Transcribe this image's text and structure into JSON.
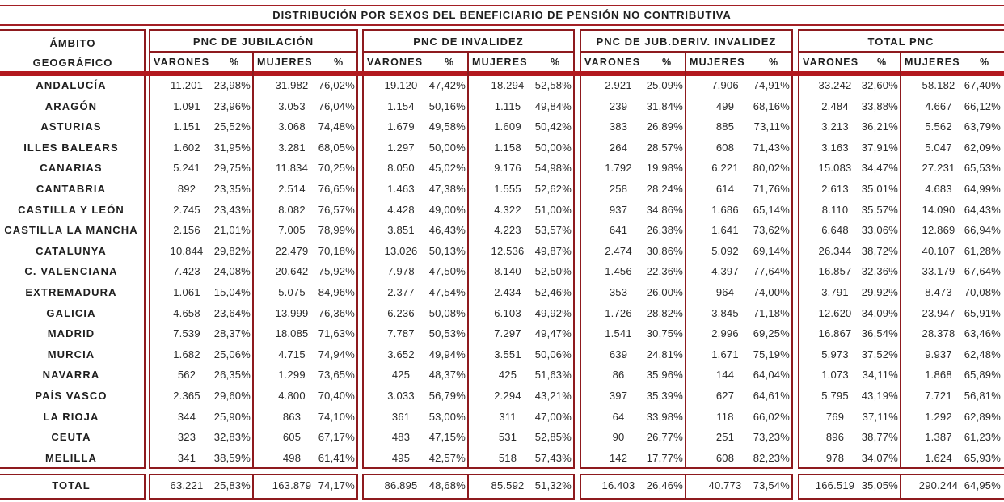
{
  "title": "DISTRIBUCIÓN POR SEXOS DEL BENEFICIARIO DE PENSIÓN NO CONTRIBUTIVA",
  "header": {
    "ambito_line1": "ÁMBITO",
    "ambito_line2": "GEOGRÁFICO",
    "groups": [
      {
        "label": "PNC DE JUBILACIÓN"
      },
      {
        "label": "PNC DE INVALIDEZ"
      },
      {
        "label": "PNC DE JUB.DERIV. INVALIDEZ"
      },
      {
        "label": "TOTAL PNC"
      }
    ],
    "sub": {
      "varones": "VARONES",
      "pct": "%",
      "mujeres": "MUJERES"
    }
  },
  "rows": [
    {
      "name": "ANDALUCÍA",
      "v": [
        "11.201",
        "23,98%",
        "31.982",
        "76,02%",
        "19.120",
        "47,42%",
        "18.294",
        "52,58%",
        "2.921",
        "25,09%",
        "7.906",
        "74,91%",
        "33.242",
        "32,60%",
        "58.182",
        "67,40%"
      ]
    },
    {
      "name": "ARAGÓN",
      "v": [
        "1.091",
        "23,96%",
        "3.053",
        "76,04%",
        "1.154",
        "50,16%",
        "1.115",
        "49,84%",
        "239",
        "31,84%",
        "499",
        "68,16%",
        "2.484",
        "33,88%",
        "4.667",
        "66,12%"
      ]
    },
    {
      "name": "ASTURIAS",
      "v": [
        "1.151",
        "25,52%",
        "3.068",
        "74,48%",
        "1.679",
        "49,58%",
        "1.609",
        "50,42%",
        "383",
        "26,89%",
        "885",
        "73,11%",
        "3.213",
        "36,21%",
        "5.562",
        "63,79%"
      ]
    },
    {
      "name": "ILLES BALEARS",
      "v": [
        "1.602",
        "31,95%",
        "3.281",
        "68,05%",
        "1.297",
        "50,00%",
        "1.158",
        "50,00%",
        "264",
        "28,57%",
        "608",
        "71,43%",
        "3.163",
        "37,91%",
        "5.047",
        "62,09%"
      ]
    },
    {
      "name": "CANARIAS",
      "v": [
        "5.241",
        "29,75%",
        "11.834",
        "70,25%",
        "8.050",
        "45,02%",
        "9.176",
        "54,98%",
        "1.792",
        "19,98%",
        "6.221",
        "80,02%",
        "15.083",
        "34,47%",
        "27.231",
        "65,53%"
      ]
    },
    {
      "name": "CANTABRIA",
      "v": [
        "892",
        "23,35%",
        "2.514",
        "76,65%",
        "1.463",
        "47,38%",
        "1.555",
        "52,62%",
        "258",
        "28,24%",
        "614",
        "71,76%",
        "2.613",
        "35,01%",
        "4.683",
        "64,99%"
      ]
    },
    {
      "name": "CASTILLA Y LEÓN",
      "v": [
        "2.745",
        "23,43%",
        "8.082",
        "76,57%",
        "4.428",
        "49,00%",
        "4.322",
        "51,00%",
        "937",
        "34,86%",
        "1.686",
        "65,14%",
        "8.110",
        "35,57%",
        "14.090",
        "64,43%"
      ]
    },
    {
      "name": "CASTILLA LA MANCHA",
      "v": [
        "2.156",
        "21,01%",
        "7.005",
        "78,99%",
        "3.851",
        "46,43%",
        "4.223",
        "53,57%",
        "641",
        "26,38%",
        "1.641",
        "73,62%",
        "6.648",
        "33,06%",
        "12.869",
        "66,94%"
      ]
    },
    {
      "name": "CATALUNYA",
      "v": [
        "10.844",
        "29,82%",
        "22.479",
        "70,18%",
        "13.026",
        "50,13%",
        "12.536",
        "49,87%",
        "2.474",
        "30,86%",
        "5.092",
        "69,14%",
        "26.344",
        "38,72%",
        "40.107",
        "61,28%"
      ]
    },
    {
      "name": "C. VALENCIANA",
      "v": [
        "7.423",
        "24,08%",
        "20.642",
        "75,92%",
        "7.978",
        "47,50%",
        "8.140",
        "52,50%",
        "1.456",
        "22,36%",
        "4.397",
        "77,64%",
        "16.857",
        "32,36%",
        "33.179",
        "67,64%"
      ]
    },
    {
      "name": "EXTREMADURA",
      "v": [
        "1.061",
        "15,04%",
        "5.075",
        "84,96%",
        "2.377",
        "47,54%",
        "2.434",
        "52,46%",
        "353",
        "26,00%",
        "964",
        "74,00%",
        "3.791",
        "29,92%",
        "8.473",
        "70,08%"
      ]
    },
    {
      "name": "GALICIA",
      "v": [
        "4.658",
        "23,64%",
        "13.999",
        "76,36%",
        "6.236",
        "50,08%",
        "6.103",
        "49,92%",
        "1.726",
        "28,82%",
        "3.845",
        "71,18%",
        "12.620",
        "34,09%",
        "23.947",
        "65,91%"
      ]
    },
    {
      "name": "MADRID",
      "v": [
        "7.539",
        "28,37%",
        "18.085",
        "71,63%",
        "7.787",
        "50,53%",
        "7.297",
        "49,47%",
        "1.541",
        "30,75%",
        "2.996",
        "69,25%",
        "16.867",
        "36,54%",
        "28.378",
        "63,46%"
      ]
    },
    {
      "name": "MURCIA",
      "v": [
        "1.682",
        "25,06%",
        "4.715",
        "74,94%",
        "3.652",
        "49,94%",
        "3.551",
        "50,06%",
        "639",
        "24,81%",
        "1.671",
        "75,19%",
        "5.973",
        "37,52%",
        "9.937",
        "62,48%"
      ]
    },
    {
      "name": "NAVARRA",
      "v": [
        "562",
        "26,35%",
        "1.299",
        "73,65%",
        "425",
        "48,37%",
        "425",
        "51,63%",
        "86",
        "35,96%",
        "144",
        "64,04%",
        "1.073",
        "34,11%",
        "1.868",
        "65,89%"
      ]
    },
    {
      "name": "PAÍS VASCO",
      "v": [
        "2.365",
        "29,60%",
        "4.800",
        "70,40%",
        "3.033",
        "56,79%",
        "2.294",
        "43,21%",
        "397",
        "35,39%",
        "627",
        "64,61%",
        "5.795",
        "43,19%",
        "7.721",
        "56,81%"
      ]
    },
    {
      "name": "LA RIOJA",
      "v": [
        "344",
        "25,90%",
        "863",
        "74,10%",
        "361",
        "53,00%",
        "311",
        "47,00%",
        "64",
        "33,98%",
        "118",
        "66,02%",
        "769",
        "37,11%",
        "1.292",
        "62,89%"
      ]
    },
    {
      "name": "CEUTA",
      "v": [
        "323",
        "32,83%",
        "605",
        "67,17%",
        "483",
        "47,15%",
        "531",
        "52,85%",
        "90",
        "26,77%",
        "251",
        "73,23%",
        "896",
        "38,77%",
        "1.387",
        "61,23%"
      ]
    },
    {
      "name": "MELILLA",
      "v": [
        "341",
        "38,59%",
        "498",
        "61,41%",
        "495",
        "42,57%",
        "518",
        "57,43%",
        "142",
        "17,77%",
        "608",
        "82,23%",
        "978",
        "34,07%",
        "1.624",
        "65,93%"
      ]
    }
  ],
  "total": {
    "name": "TOTAL",
    "v": [
      "63.221",
      "25,83%",
      "163.879",
      "74,17%",
      "86.895",
      "48,68%",
      "85.592",
      "51,32%",
      "16.403",
      "26,46%",
      "40.773",
      "73,54%",
      "166.519",
      "35,05%",
      "290.244",
      "64,95%"
    ]
  }
}
